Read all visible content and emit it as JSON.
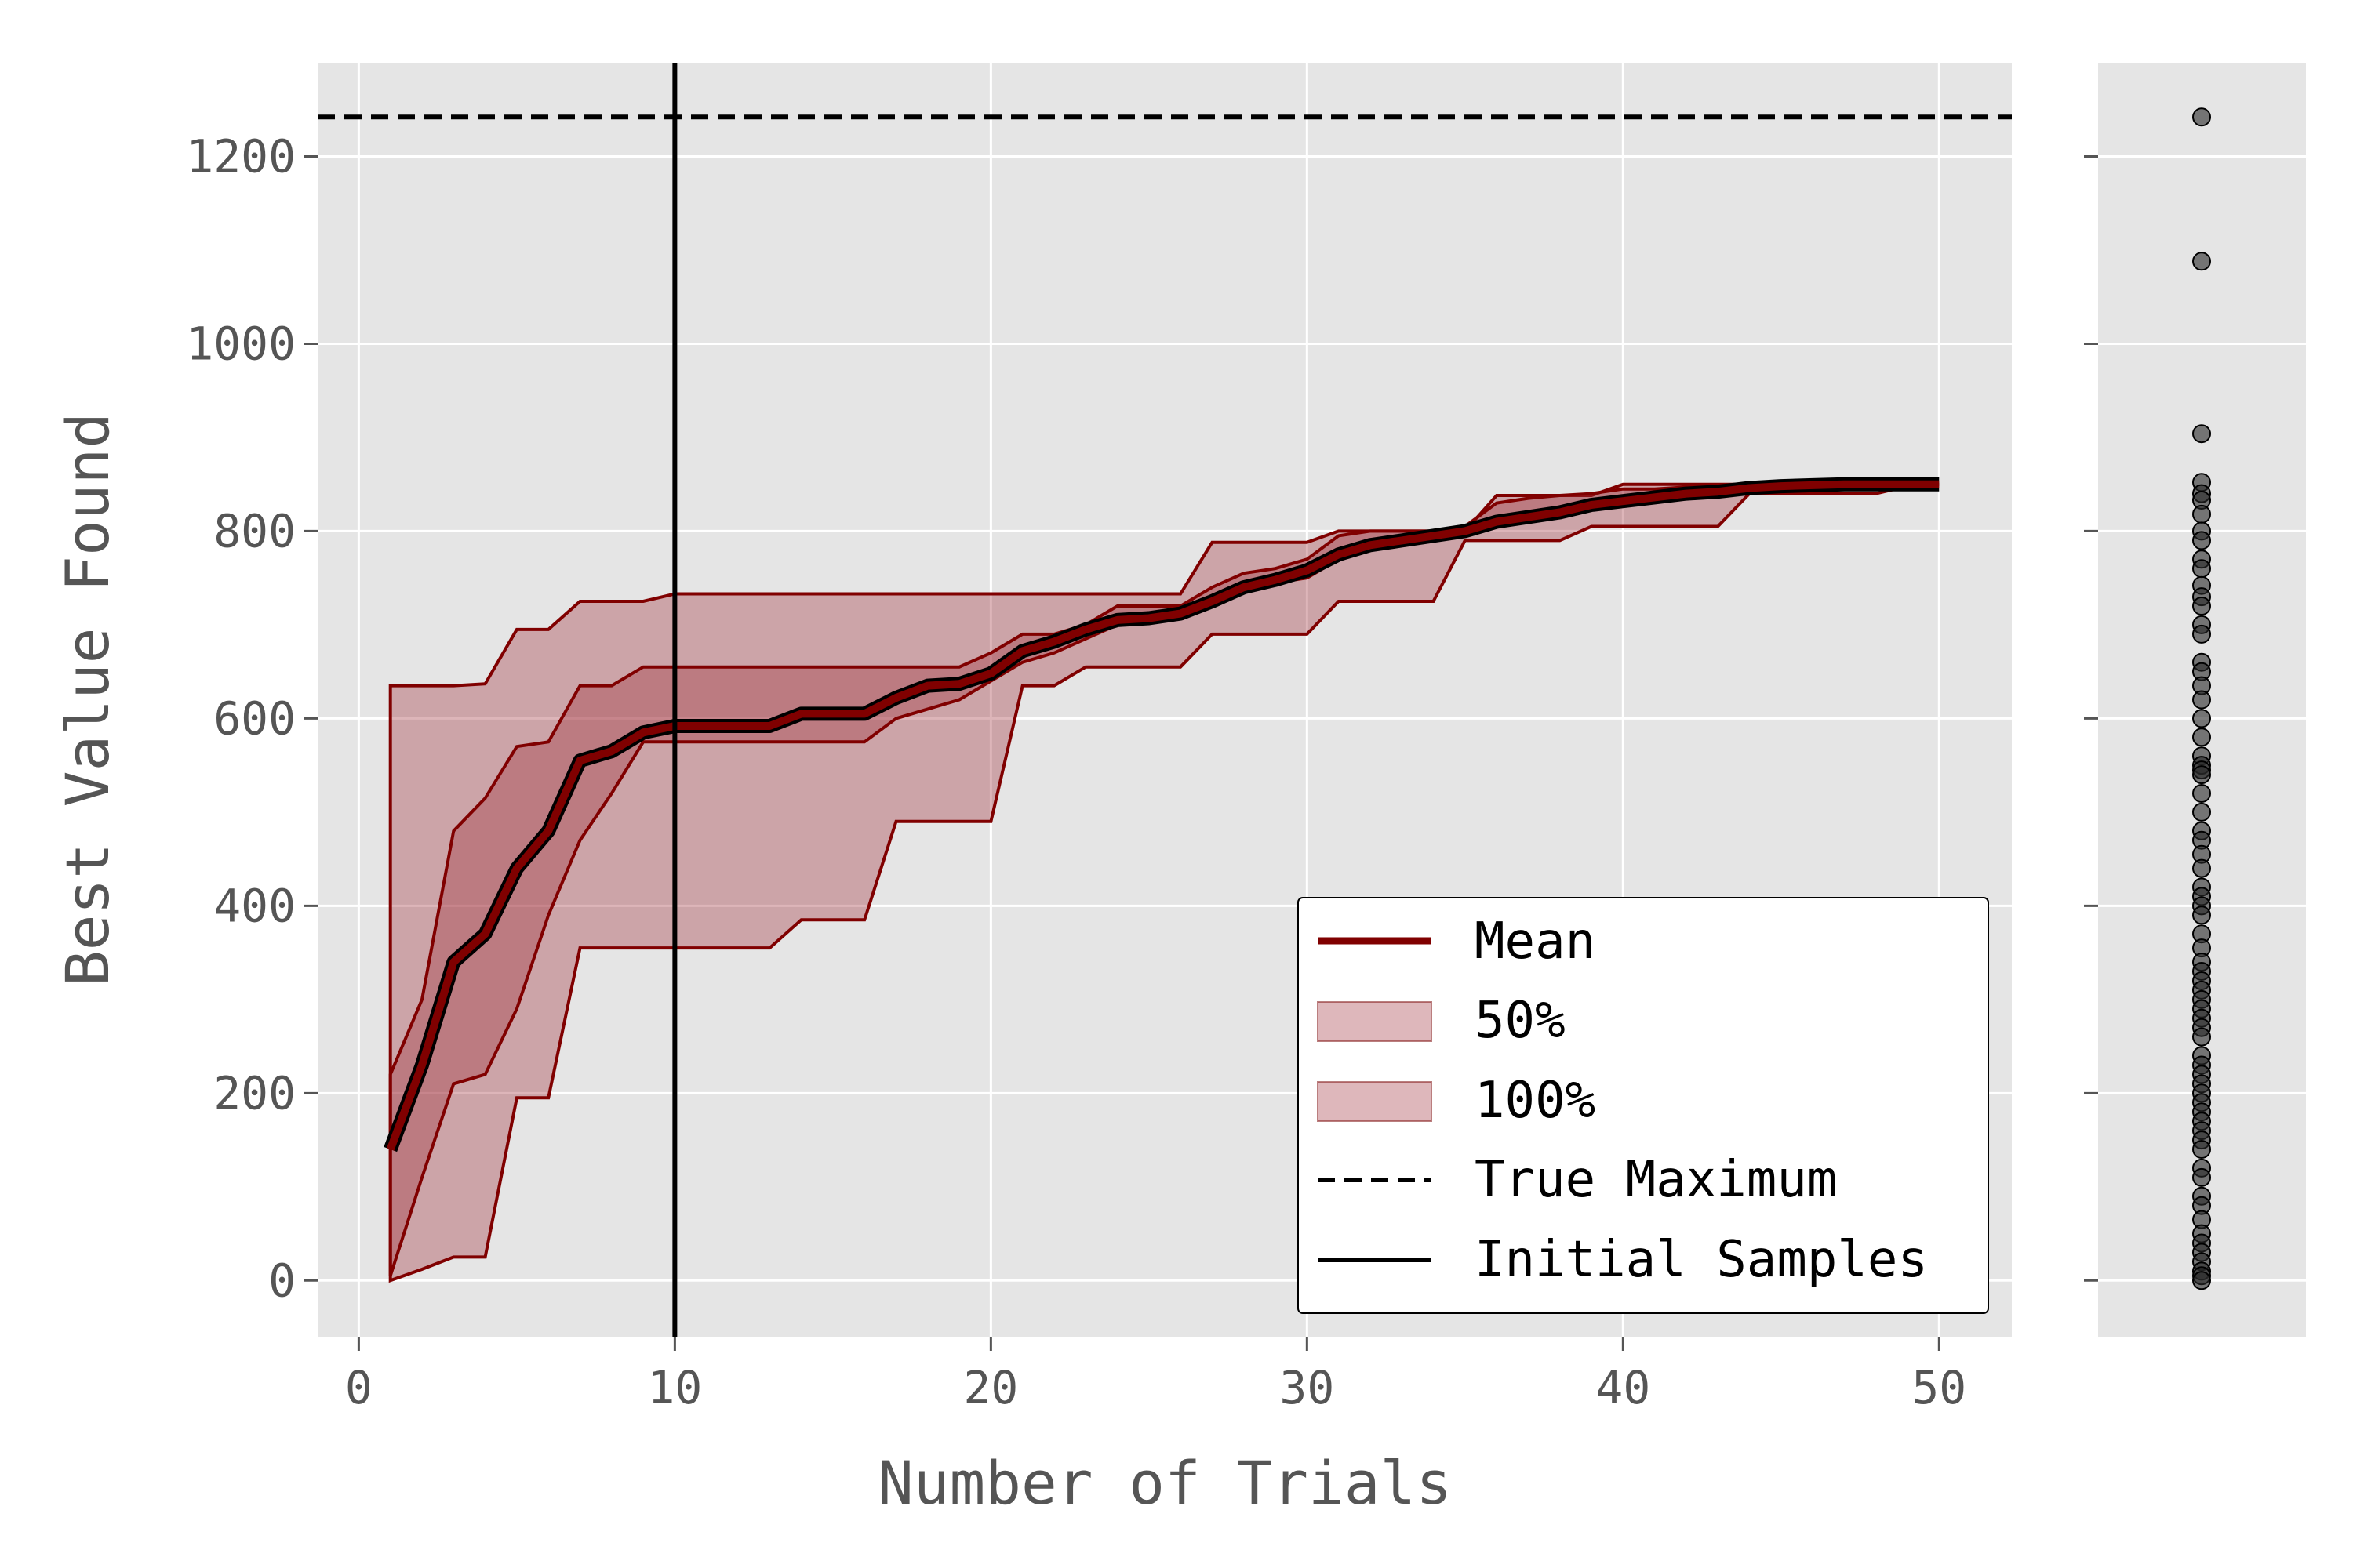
{
  "chart_data": {
    "type": "line",
    "xlabel": "Number of Trials",
    "ylabel": "Best Value Found",
    "xlim": [
      -1.3,
      52.3
    ],
    "ylim": [
      -60,
      1300
    ],
    "x_ticks": [
      "0",
      "10",
      "20",
      "30",
      "40",
      "50"
    ],
    "y_ticks": [
      "0",
      "200",
      "400",
      "600",
      "800",
      "1000",
      "1200"
    ],
    "grid": true,
    "legend_position": "lower-right",
    "legend": [
      {
        "label": "Mean",
        "kind": "line"
      },
      {
        "label": "50%",
        "kind": "patch"
      },
      {
        "label": "100%",
        "kind": "patch"
      },
      {
        "label": "True Maximum",
        "kind": "dashed"
      },
      {
        "label": "Initial Samples",
        "kind": "solid"
      }
    ],
    "x": [
      1,
      2,
      3,
      4,
      5,
      6,
      7,
      8,
      9,
      10,
      11,
      12,
      13,
      14,
      15,
      16,
      17,
      18,
      19,
      20,
      21,
      22,
      23,
      24,
      25,
      26,
      27,
      28,
      29,
      30,
      31,
      32,
      33,
      34,
      35,
      36,
      37,
      38,
      39,
      40,
      41,
      42,
      43,
      44,
      45,
      46,
      47,
      48,
      49,
      50
    ],
    "series": [
      {
        "name": "Mean",
        "values": [
          140,
          230,
          340,
          370,
          440,
          480,
          555,
          565,
          585,
          592,
          592,
          592,
          592,
          605,
          605,
          605,
          622,
          635,
          637,
          648,
          672,
          682,
          695,
          705,
          707,
          712,
          725,
          740,
          748,
          758,
          775,
          785,
          790,
          795,
          800,
          810,
          815,
          820,
          828,
          832,
          836,
          840,
          842,
          846,
          848,
          849,
          850,
          850,
          850,
          850
        ]
      },
      {
        "name": "50%",
        "lower": [
          5,
          110,
          210,
          220,
          290,
          390,
          470,
          520,
          575,
          575,
          575,
          575,
          575,
          575,
          575,
          575,
          600,
          610,
          620,
          640,
          660,
          670,
          685,
          700,
          705,
          710,
          720,
          735,
          745,
          750,
          770,
          785,
          790,
          795,
          800,
          808,
          812,
          815,
          825,
          830,
          834,
          838,
          840,
          842,
          845,
          847,
          848,
          849,
          850,
          850
        ],
        "upper": [
          220,
          300,
          480,
          515,
          570,
          575,
          635,
          635,
          655,
          655,
          655,
          655,
          655,
          655,
          655,
          655,
          655,
          655,
          655,
          670,
          690,
          690,
          700,
          720,
          720,
          720,
          740,
          755,
          760,
          770,
          795,
          800,
          800,
          800,
          805,
          830,
          835,
          838,
          840,
          845,
          845,
          847,
          847,
          848,
          848,
          849,
          850,
          850,
          850,
          850
        ]
      },
      {
        "name": "100%",
        "lower": [
          0,
          12,
          25,
          25,
          195,
          195,
          355,
          355,
          355,
          355,
          355,
          355,
          355,
          385,
          385,
          385,
          490,
          490,
          490,
          490,
          635,
          635,
          655,
          655,
          655,
          655,
          690,
          690,
          690,
          690,
          725,
          725,
          725,
          725,
          790,
          790,
          790,
          790,
          805,
          805,
          805,
          805,
          805,
          840,
          840,
          840,
          840,
          840,
          848,
          850
        ],
        "upper": [
          635,
          635,
          635,
          637,
          695,
          695,
          725,
          725,
          725,
          733,
          733,
          733,
          733,
          733,
          733,
          733,
          733,
          733,
          733,
          733,
          733,
          733,
          733,
          733,
          733,
          733,
          788,
          788,
          788,
          788,
          800,
          800,
          800,
          800,
          800,
          838,
          838,
          838,
          838,
          850,
          850,
          850,
          850,
          850,
          850,
          850,
          850,
          850,
          850,
          850
        ]
      }
    ],
    "true_maximum": 1242,
    "initial_samples_x": 10,
    "side_distribution": [
      1242,
      1088,
      904,
      852,
      840,
      833,
      818,
      800,
      790,
      770,
      760,
      742,
      730,
      720,
      700,
      690,
      660,
      650,
      635,
      620,
      600,
      580,
      560,
      550,
      545,
      540,
      520,
      500,
      480,
      470,
      455,
      440,
      420,
      410,
      400,
      390,
      370,
      355,
      340,
      330,
      320,
      310,
      300,
      290,
      280,
      270,
      260,
      240,
      230,
      220,
      210,
      200,
      190,
      180,
      170,
      160,
      150,
      140,
      120,
      110,
      90,
      80,
      65,
      50,
      40,
      30,
      20,
      10,
      5,
      0
    ]
  }
}
